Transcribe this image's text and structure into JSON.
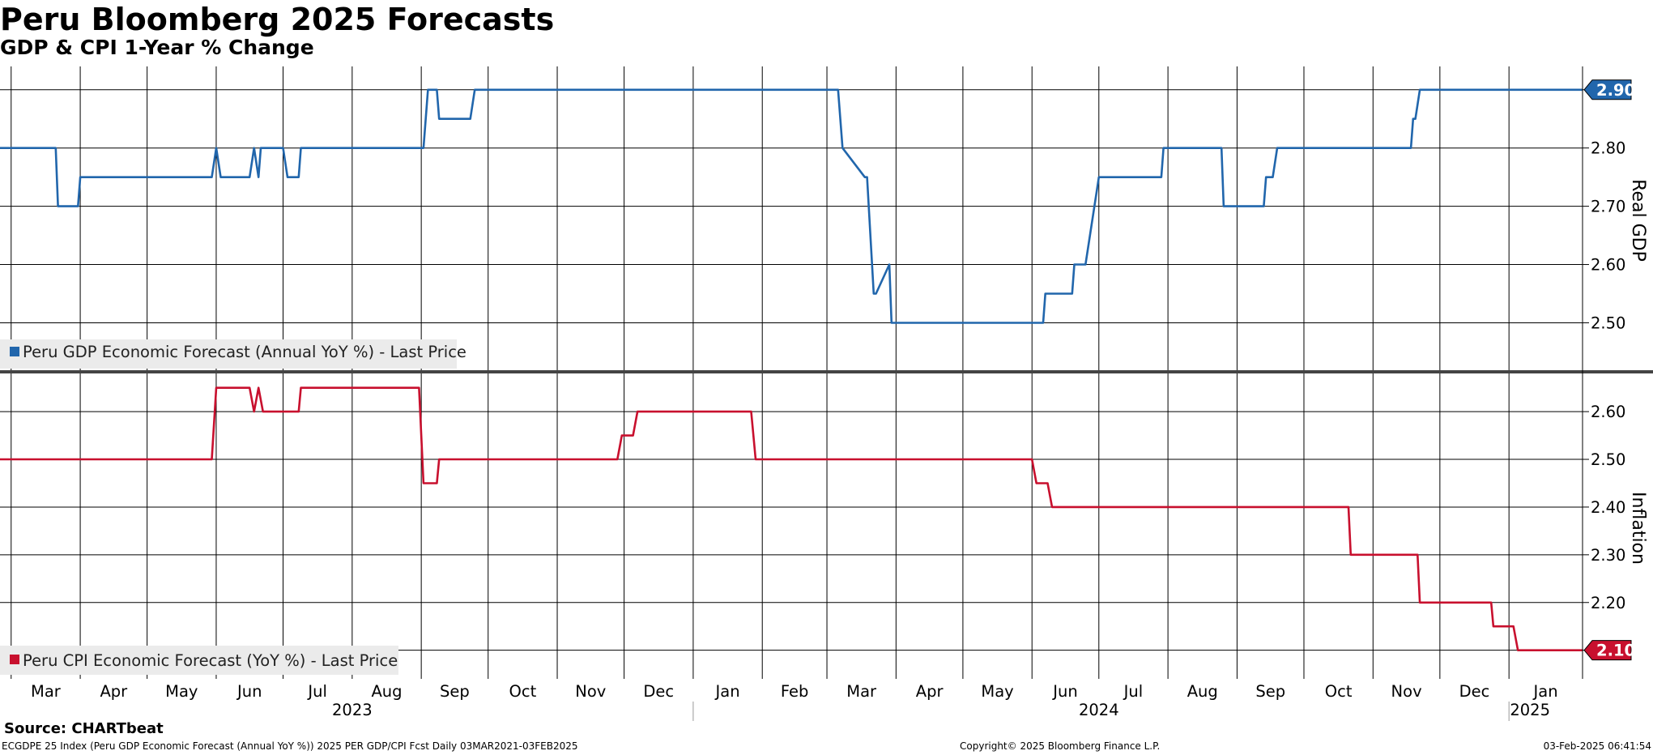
{
  "header": {
    "title": "Peru Bloomberg 2025 Forecasts",
    "subtitle": "GDP & CPI 1-Year % Change"
  },
  "footer": {
    "source": "Source: CHARTbeat",
    "left": "ECGDPE 25 Index (Peru GDP Economic Forecast (Annual YoY %)) 2025 PER GDP/CPI Fcst  Daily 03MAR2021-03FEB2025",
    "center": "Copyright© 2025 Bloomberg Finance L.P.",
    "right": "03-Feb-2025 06:41:54"
  },
  "colors": {
    "gdp": "#2166ac",
    "cpi": "#c8102e",
    "grid": "#000000",
    "legend_bg": "#ebebeb"
  },
  "chart_data": [
    {
      "type": "line",
      "title": "",
      "ylabel": "Real GDP",
      "ylim": [
        2.42,
        2.94
      ],
      "yticks": [
        "2.50",
        "2.60",
        "2.70",
        "2.80"
      ],
      "last_value_label": "2.90",
      "legend_position": "bottom-left",
      "series": [
        {
          "name": "Peru GDP Economic Forecast (Annual YoY %) - Last Price",
          "x": [
            "2023-02-24",
            "2023-03-21",
            "2023-03-22",
            "2023-03-31",
            "2023-04-01",
            "2023-05-30",
            "2023-06-01",
            "2023-06-03",
            "2023-06-05",
            "2023-06-16",
            "2023-06-18",
            "2023-06-20",
            "2023-06-21",
            "2023-06-24",
            "2023-07-01",
            "2023-07-03",
            "2023-07-04",
            "2023-07-08",
            "2023-07-09",
            "2023-09-02",
            "2023-09-04",
            "2023-09-08",
            "2023-09-09",
            "2023-09-23",
            "2023-09-25",
            "2024-03-06",
            "2024-03-08",
            "2024-03-18",
            "2024-03-19",
            "2024-03-22",
            "2024-03-23",
            "2024-03-29",
            "2024-03-30",
            "2024-06-06",
            "2024-06-07",
            "2024-06-19",
            "2024-06-20",
            "2024-06-24",
            "2024-06-25",
            "2024-07-01",
            "2024-07-03",
            "2024-07-29",
            "2024-07-30",
            "2024-08-25",
            "2024-08-26",
            "2024-09-13",
            "2024-09-14",
            "2024-09-17",
            "2024-09-19",
            "2024-11-18",
            "2024-11-19",
            "2024-11-20",
            "2024-11-22",
            "2025-02-03"
          ],
          "values": [
            2.8,
            2.8,
            2.7,
            2.7,
            2.75,
            2.75,
            2.8,
            2.75,
            2.75,
            2.75,
            2.8,
            2.75,
            2.8,
            2.8,
            2.8,
            2.75,
            2.75,
            2.75,
            2.8,
            2.8,
            2.9,
            2.9,
            2.85,
            2.85,
            2.9,
            2.9,
            2.8,
            2.75,
            2.75,
            2.55,
            2.55,
            2.6,
            2.5,
            2.5,
            2.55,
            2.55,
            2.6,
            2.6,
            2.6,
            2.75,
            2.75,
            2.75,
            2.8,
            2.8,
            2.7,
            2.7,
            2.75,
            2.75,
            2.8,
            2.8,
            2.85,
            2.85,
            2.9,
            2.9
          ]
        }
      ]
    },
    {
      "type": "line",
      "title": "",
      "ylabel": "Inflation",
      "ylim": [
        2.04,
        2.68
      ],
      "yticks": [
        "2.20",
        "2.30",
        "2.40",
        "2.50",
        "2.60"
      ],
      "last_value_label": "2.10",
      "legend_position": "bottom-left",
      "series": [
        {
          "name": "Peru CPI Economic Forecast (YoY %) - Last Price",
          "x": [
            "2023-02-24",
            "2023-05-30",
            "2023-06-01",
            "2023-06-16",
            "2023-06-18",
            "2023-06-20",
            "2023-06-22",
            "2023-07-08",
            "2023-07-09",
            "2023-08-31",
            "2023-09-02",
            "2023-09-08",
            "2023-09-09",
            "2023-11-28",
            "2023-11-30",
            "2023-12-05",
            "2023-12-07",
            "2024-01-27",
            "2024-01-29",
            "2024-06-01",
            "2024-06-03",
            "2024-06-08",
            "2024-06-10",
            "2024-10-21",
            "2024-10-22",
            "2024-11-21",
            "2024-11-22",
            "2024-12-24",
            "2024-12-25",
            "2025-01-03",
            "2025-01-05",
            "2025-02-03"
          ],
          "values": [
            2.5,
            2.5,
            2.65,
            2.65,
            2.6,
            2.65,
            2.6,
            2.6,
            2.65,
            2.65,
            2.45,
            2.45,
            2.5,
            2.5,
            2.55,
            2.55,
            2.6,
            2.6,
            2.5,
            2.5,
            2.45,
            2.45,
            2.4,
            2.4,
            2.3,
            2.3,
            2.2,
            2.2,
            2.15,
            2.15,
            2.1,
            2.1
          ]
        }
      ]
    }
  ],
  "x_axis": {
    "months": [
      {
        "label": "Mar",
        "date": "2023-03-01"
      },
      {
        "label": "Apr",
        "date": "2023-04-01"
      },
      {
        "label": "May",
        "date": "2023-05-01"
      },
      {
        "label": "Jun",
        "date": "2023-06-01"
      },
      {
        "label": "Jul",
        "date": "2023-07-01"
      },
      {
        "label": "Aug",
        "date": "2023-08-01"
      },
      {
        "label": "Sep",
        "date": "2023-09-01"
      },
      {
        "label": "Oct",
        "date": "2023-10-01"
      },
      {
        "label": "Nov",
        "date": "2023-11-01"
      },
      {
        "label": "Dec",
        "date": "2023-12-01"
      },
      {
        "label": "Jan",
        "date": "2024-01-01"
      },
      {
        "label": "Feb",
        "date": "2024-02-01"
      },
      {
        "label": "Mar",
        "date": "2024-03-01"
      },
      {
        "label": "Apr",
        "date": "2024-04-01"
      },
      {
        "label": "May",
        "date": "2024-05-01"
      },
      {
        "label": "Jun",
        "date": "2024-06-01"
      },
      {
        "label": "Jul",
        "date": "2024-07-01"
      },
      {
        "label": "Aug",
        "date": "2024-08-01"
      },
      {
        "label": "Sep",
        "date": "2024-09-01"
      },
      {
        "label": "Oct",
        "date": "2024-10-01"
      },
      {
        "label": "Nov",
        "date": "2024-11-01"
      },
      {
        "label": "Dec",
        "date": "2024-12-01"
      },
      {
        "label": "Jan",
        "date": "2025-01-01"
      }
    ],
    "years": [
      {
        "label": "2023",
        "date": "2023-08-01"
      },
      {
        "label": "2024",
        "date": "2024-07-01"
      },
      {
        "label": "2025",
        "date": "2025-01-01"
      }
    ],
    "year_breaks": [
      "2024-01-01",
      "2025-01-01"
    ]
  }
}
